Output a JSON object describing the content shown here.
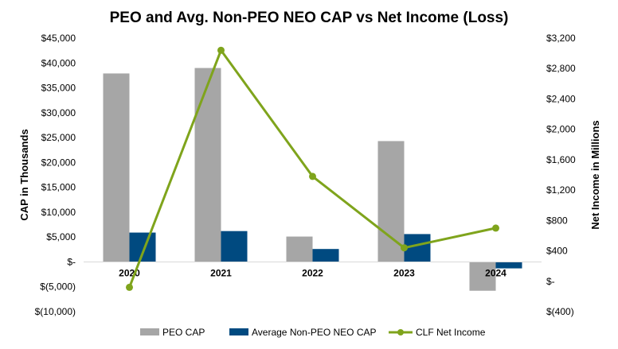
{
  "chart_data": {
    "type": "bar",
    "title": "PEO and Avg. Non-PEO NEO CAP vs Net Income (Loss)",
    "categories": [
      "2020",
      "2021",
      "2022",
      "2023",
      "2024"
    ],
    "ylabel": "CAP in Thousands",
    "y2label": "Net Income in Millions",
    "ylim": [
      -10000,
      45000
    ],
    "y2lim": [
      -400,
      3200
    ],
    "yticks": [
      45000,
      40000,
      35000,
      30000,
      25000,
      20000,
      15000,
      10000,
      5000,
      0,
      -5000,
      -10000
    ],
    "ytick_labels": [
      "$45,000",
      "$40,000",
      "$35,000",
      "$30,000",
      "$25,000",
      "$20,000",
      "$15,000",
      "$10,000",
      "$5,000",
      "$-",
      "$(5,000)",
      "$(10,000)"
    ],
    "y2ticks": [
      3200,
      2800,
      2400,
      2000,
      1600,
      1200,
      800,
      400,
      0,
      -400
    ],
    "y2tick_labels": [
      "$3,200",
      "$2,800",
      "$2,400",
      "$2,000",
      "$1,600",
      "$1,200",
      "$800",
      "$400",
      "$-",
      "$(400)"
    ],
    "series": [
      {
        "name": "PEO CAP",
        "kind": "bar",
        "axis": "left",
        "color": "#a6a6a6",
        "values": [
          37900,
          39000,
          5100,
          24300,
          -5800
        ]
      },
      {
        "name": "Average Non-PEO NEO CAP",
        "kind": "bar",
        "axis": "left",
        "color": "#004a80",
        "values": [
          5900,
          6200,
          2600,
          5600,
          -1300
        ]
      },
      {
        "name": "CLF Net Income",
        "kind": "line",
        "axis": "right",
        "color": "#7fa41c",
        "values": [
          -80,
          3040,
          1380,
          440,
          700
        ]
      }
    ],
    "legend_position": "bottom"
  }
}
